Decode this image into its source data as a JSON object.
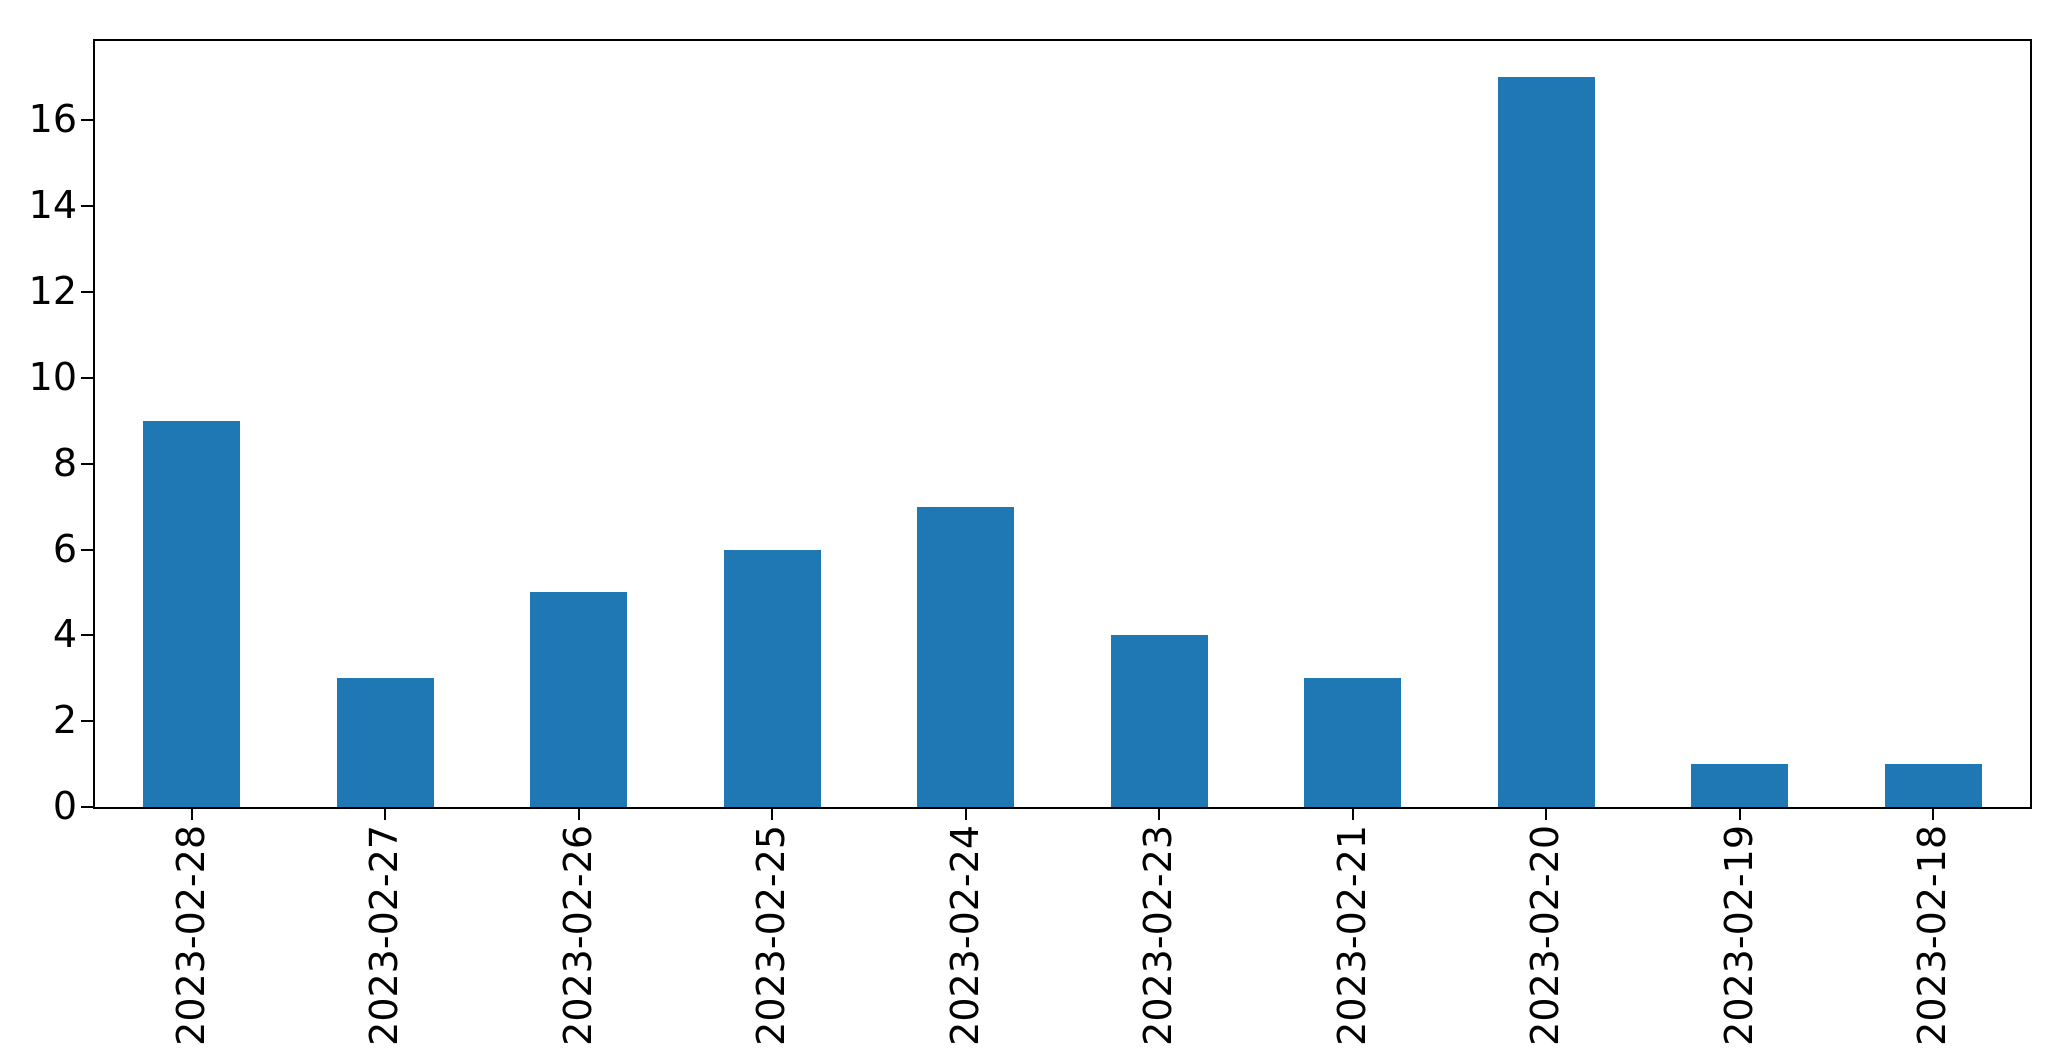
{
  "figure": {
    "background_color": "#ffffff",
    "axis_color": "#000000"
  },
  "chart_data": {
    "type": "bar",
    "title": "",
    "xlabel": "",
    "ylabel": "",
    "categories": [
      "2023-02-28",
      "2023-02-27",
      "2023-02-26",
      "2023-02-25",
      "2023-02-24",
      "2023-02-23",
      "2023-02-21",
      "2023-02-20",
      "2023-02-19",
      "2023-02-18"
    ],
    "values": [
      9,
      3,
      5,
      6,
      7,
      4,
      3,
      17,
      1,
      1
    ],
    "yticks": [
      0,
      2,
      4,
      6,
      8,
      10,
      12,
      14,
      16
    ],
    "ylim": [
      0,
      17.85
    ],
    "xtick_rotation_deg": 90,
    "bar_color": "#1f77b4",
    "bar_width_fraction": 0.5,
    "grid": false,
    "legend": null
  }
}
